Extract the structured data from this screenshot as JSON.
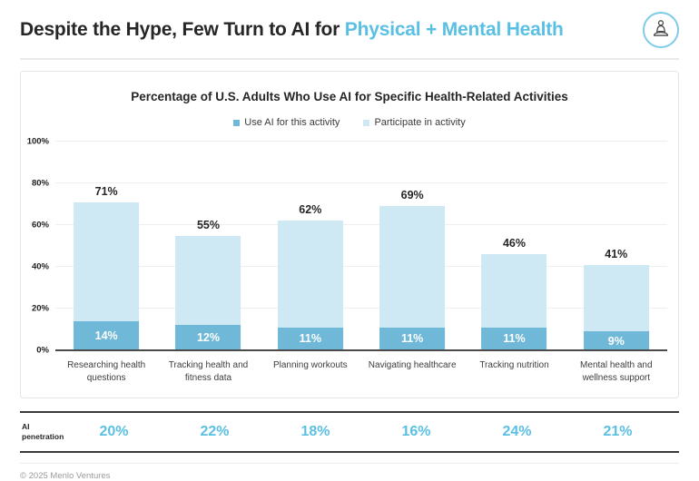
{
  "header": {
    "title_prefix": "Despite the Hype, Few Turn to AI for ",
    "title_accent": "Physical + Mental Health",
    "icon": "meditation-icon"
  },
  "chart_data": {
    "type": "bar",
    "title": "Percentage of U.S. Adults Who Use AI for Specific Health-Related Activities",
    "legend_position": "top",
    "legend": [
      {
        "label": "Use AI for this activity",
        "color": "#6fb8d7"
      },
      {
        "label": "Participate in activity",
        "color": "#cfe9f4"
      }
    ],
    "categories": [
      "Researching health questions",
      "Tracking health and fitness data",
      "Planning workouts",
      "Navigating healthcare",
      "Tracking nutrition",
      "Mental health and wellness support"
    ],
    "series": [
      {
        "name": "Participate in activity",
        "values": [
          71,
          55,
          62,
          69,
          46,
          41
        ]
      },
      {
        "name": "Use AI for this activity",
        "values": [
          14,
          12,
          11,
          11,
          11,
          9
        ]
      }
    ],
    "y_ticks": [
      "0%",
      "20%",
      "40%",
      "60%",
      "80%",
      "100%"
    ],
    "ylim": [
      0,
      100
    ],
    "grid": true,
    "xlabel": "",
    "ylabel": ""
  },
  "penetration": {
    "label": "AI penetration",
    "values": [
      "20%",
      "22%",
      "18%",
      "16%",
      "24%",
      "21%"
    ]
  },
  "footer": {
    "copyright": "© 2025 Menlo Ventures"
  },
  "colors": {
    "accent": "#5ac0e3",
    "bar_light": "#cfe9f4",
    "bar_dark": "#6fb8d7",
    "axis": "#4b4b4b",
    "grid": "#efefef",
    "card_border": "#e5e5e5",
    "muted_text": "#9b9b9b"
  }
}
